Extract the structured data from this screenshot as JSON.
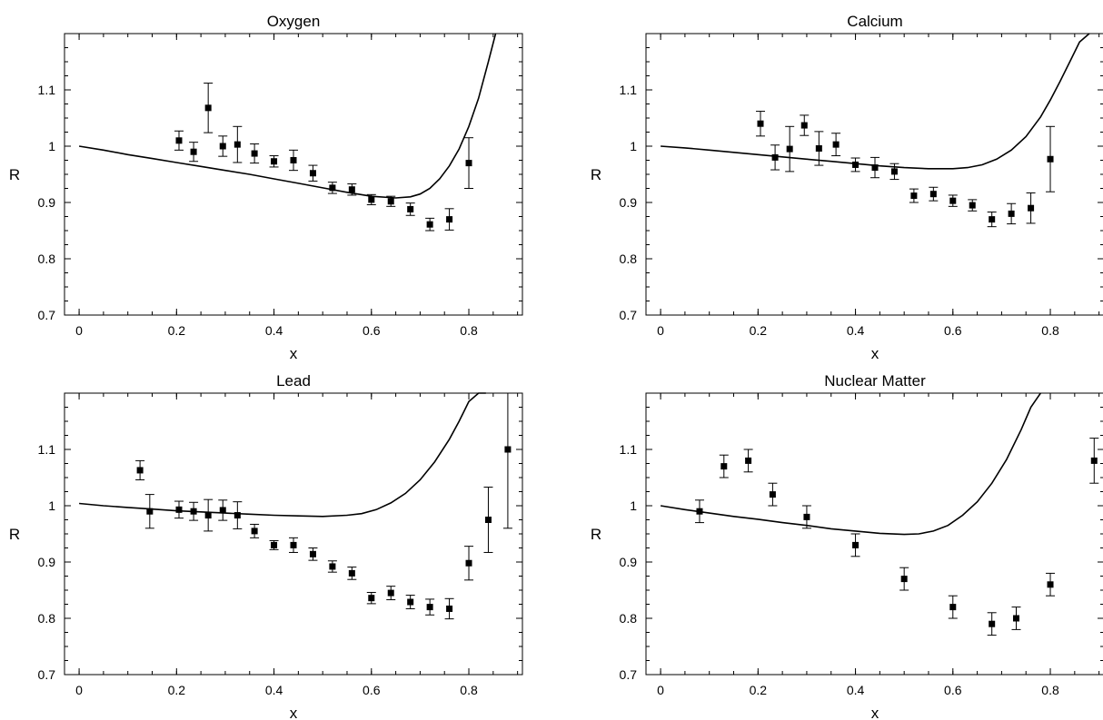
{
  "chart_data": [
    {
      "type": "scatter",
      "title": "Oxygen",
      "xlabel": "x",
      "ylabel": "R",
      "xlim": [
        -0.03,
        0.91
      ],
      "ylim": [
        0.7,
        1.2
      ],
      "xticks": [
        "0",
        "0.2",
        "0.4",
        "0.6",
        "0.8"
      ],
      "yticks": [
        "0.7",
        "0.8",
        "0.9",
        "1",
        "1.1"
      ],
      "series": [
        {
          "kind": "points_with_errors",
          "x": [
            0.205,
            0.235,
            0.265,
            0.295,
            0.325,
            0.36,
            0.4,
            0.44,
            0.48,
            0.52,
            0.56,
            0.6,
            0.64,
            0.68,
            0.72,
            0.76,
            0.8
          ],
          "y": [
            1.01,
            0.99,
            1.068,
            1.0,
            1.003,
            0.987,
            0.973,
            0.975,
            0.952,
            0.926,
            0.923,
            0.905,
            0.902,
            0.888,
            0.861,
            0.87,
            0.97
          ],
          "err": [
            0.017,
            0.017,
            0.044,
            0.018,
            0.032,
            0.017,
            0.01,
            0.018,
            0.014,
            0.01,
            0.01,
            0.009,
            0.009,
            0.011,
            0.011,
            0.019,
            0.045
          ]
        },
        {
          "kind": "curve",
          "x": [
            0.0,
            0.05,
            0.1,
            0.15,
            0.2,
            0.25,
            0.3,
            0.35,
            0.4,
            0.45,
            0.5,
            0.55,
            0.6,
            0.65,
            0.68,
            0.7,
            0.72,
            0.74,
            0.76,
            0.78,
            0.8,
            0.82,
            0.84,
            0.855
          ],
          "y": [
            1.0,
            0.993,
            0.985,
            0.978,
            0.971,
            0.964,
            0.957,
            0.95,
            0.942,
            0.934,
            0.926,
            0.918,
            0.911,
            0.908,
            0.91,
            0.915,
            0.925,
            0.942,
            0.965,
            0.995,
            1.035,
            1.085,
            1.15,
            1.2
          ]
        }
      ]
    },
    {
      "type": "scatter",
      "title": "Calcium",
      "xlabel": "x",
      "ylabel": "R",
      "xlim": [
        -0.03,
        0.91
      ],
      "ylim": [
        0.7,
        1.2
      ],
      "xticks": [
        "0",
        "0.2",
        "0.4",
        "0.6",
        "0.8"
      ],
      "yticks": [
        "0.7",
        "0.8",
        "0.9",
        "1",
        "1.1"
      ],
      "series": [
        {
          "kind": "points_with_errors",
          "x": [
            0.205,
            0.235,
            0.265,
            0.295,
            0.325,
            0.36,
            0.4,
            0.44,
            0.48,
            0.52,
            0.56,
            0.6,
            0.64,
            0.68,
            0.72,
            0.76,
            0.8
          ],
          "y": [
            1.04,
            0.98,
            0.995,
            1.037,
            0.996,
            1.003,
            0.967,
            0.962,
            0.955,
            0.912,
            0.915,
            0.903,
            0.895,
            0.87,
            0.88,
            0.89,
            0.977
          ],
          "err": [
            0.022,
            0.022,
            0.04,
            0.018,
            0.03,
            0.02,
            0.012,
            0.018,
            0.014,
            0.012,
            0.012,
            0.01,
            0.01,
            0.013,
            0.018,
            0.027,
            0.058
          ]
        },
        {
          "kind": "curve",
          "x": [
            0.0,
            0.05,
            0.1,
            0.15,
            0.2,
            0.25,
            0.3,
            0.35,
            0.4,
            0.45,
            0.5,
            0.55,
            0.6,
            0.63,
            0.66,
            0.69,
            0.72,
            0.75,
            0.78,
            0.8,
            0.82,
            0.84,
            0.86,
            0.88
          ],
          "y": [
            1.0,
            0.997,
            0.993,
            0.989,
            0.985,
            0.981,
            0.977,
            0.973,
            0.969,
            0.965,
            0.962,
            0.96,
            0.96,
            0.962,
            0.967,
            0.977,
            0.993,
            1.017,
            1.052,
            1.082,
            1.115,
            1.15,
            1.185,
            1.2
          ]
        }
      ]
    },
    {
      "type": "scatter",
      "title": "Lead",
      "xlabel": "x",
      "ylabel": "R",
      "xlim": [
        -0.03,
        0.91
      ],
      "ylim": [
        0.7,
        1.2
      ],
      "xticks": [
        "0",
        "0.2",
        "0.4",
        "0.6",
        "0.8"
      ],
      "yticks": [
        "0.7",
        "0.8",
        "0.9",
        "1",
        "1.1"
      ],
      "series": [
        {
          "kind": "points_with_errors",
          "x": [
            0.125,
            0.145,
            0.205,
            0.235,
            0.265,
            0.295,
            0.325,
            0.36,
            0.4,
            0.44,
            0.48,
            0.52,
            0.56,
            0.6,
            0.64,
            0.68,
            0.72,
            0.76,
            0.8,
            0.84,
            0.88
          ],
          "y": [
            1.063,
            0.99,
            0.993,
            0.99,
            0.983,
            0.992,
            0.983,
            0.955,
            0.93,
            0.93,
            0.914,
            0.892,
            0.88,
            0.836,
            0.845,
            0.829,
            0.82,
            0.817,
            0.898,
            0.975,
            1.1
          ],
          "err": [
            0.017,
            0.03,
            0.015,
            0.016,
            0.028,
            0.018,
            0.024,
            0.012,
            0.008,
            0.013,
            0.011,
            0.01,
            0.011,
            0.01,
            0.012,
            0.012,
            0.014,
            0.018,
            0.03,
            0.058,
            0.14
          ]
        },
        {
          "kind": "curve",
          "x": [
            0.0,
            0.05,
            0.1,
            0.15,
            0.2,
            0.25,
            0.3,
            0.35,
            0.4,
            0.45,
            0.5,
            0.55,
            0.58,
            0.61,
            0.64,
            0.67,
            0.7,
            0.73,
            0.76,
            0.78,
            0.8,
            0.82,
            0.835
          ],
          "y": [
            1.004,
            1.0,
            0.997,
            0.994,
            0.991,
            0.989,
            0.987,
            0.985,
            0.983,
            0.982,
            0.981,
            0.983,
            0.986,
            0.993,
            1.005,
            1.022,
            1.046,
            1.078,
            1.118,
            1.15,
            1.185,
            1.2,
            1.2
          ]
        }
      ]
    },
    {
      "type": "scatter",
      "title": "Nuclear Matter",
      "xlabel": "x",
      "ylabel": "R",
      "xlim": [
        -0.03,
        0.91
      ],
      "ylim": [
        0.7,
        1.2
      ],
      "xticks": [
        "0",
        "0.2",
        "0.4",
        "0.6",
        "0.8"
      ],
      "yticks": [
        "0.7",
        "0.8",
        "0.9",
        "1",
        "1.1"
      ],
      "series": [
        {
          "kind": "points_with_errors",
          "x": [
            0.08,
            0.13,
            0.18,
            0.23,
            0.3,
            0.4,
            0.5,
            0.6,
            0.68,
            0.73,
            0.8,
            0.89
          ],
          "y": [
            0.99,
            1.07,
            1.08,
            1.02,
            0.98,
            0.93,
            0.87,
            0.82,
            0.79,
            0.8,
            0.86,
            1.08
          ],
          "err": [
            0.02,
            0.02,
            0.02,
            0.02,
            0.02,
            0.02,
            0.02,
            0.02,
            0.02,
            0.02,
            0.02,
            0.04
          ]
        },
        {
          "kind": "curve",
          "x": [
            0.0,
            0.05,
            0.1,
            0.15,
            0.2,
            0.25,
            0.3,
            0.35,
            0.4,
            0.45,
            0.5,
            0.53,
            0.56,
            0.59,
            0.62,
            0.65,
            0.68,
            0.71,
            0.74,
            0.76,
            0.78
          ],
          "y": [
            1.0,
            0.993,
            0.987,
            0.981,
            0.976,
            0.97,
            0.965,
            0.959,
            0.955,
            0.951,
            0.949,
            0.95,
            0.955,
            0.965,
            0.983,
            1.007,
            1.04,
            1.082,
            1.135,
            1.175,
            1.2
          ]
        }
      ]
    }
  ]
}
